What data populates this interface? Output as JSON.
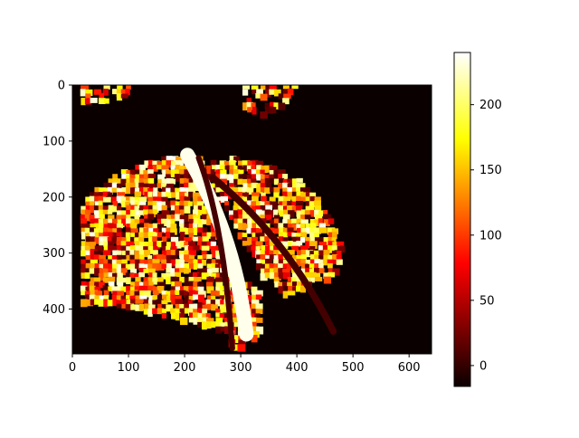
{
  "chart_data": {
    "type": "heatmap",
    "title": "",
    "xlabel": "",
    "ylabel": "",
    "xlim": [
      0,
      640
    ],
    "ylim": [
      480,
      0
    ],
    "x_ticks": [
      0,
      100,
      200,
      300,
      400,
      500,
      600
    ],
    "y_ticks": [
      0,
      100,
      200,
      300,
      400
    ],
    "colormap": "hot",
    "colorbar": {
      "range": [
        -16,
        240
      ],
      "ticks": [
        0,
        50,
        100,
        150,
        200
      ]
    },
    "regions": [
      {
        "name": "left-lobe",
        "poly": [
          [
            15,
            210
          ],
          [
            40,
            185
          ],
          [
            80,
            160
          ],
          [
            140,
            135
          ],
          [
            200,
            125
          ],
          [
            235,
            130
          ],
          [
            250,
            165
          ],
          [
            265,
            215
          ],
          [
            280,
            270
          ],
          [
            295,
            330
          ],
          [
            305,
            390
          ],
          [
            305,
            450
          ],
          [
            270,
            440
          ],
          [
            190,
            420
          ],
          [
            110,
            400
          ],
          [
            50,
            395
          ],
          [
            15,
            395
          ]
        ],
        "density": 0.8
      },
      {
        "name": "right-lobe",
        "poly": [
          [
            230,
            140
          ],
          [
            290,
            130
          ],
          [
            340,
            140
          ],
          [
            390,
            160
          ],
          [
            420,
            185
          ],
          [
            440,
            205
          ],
          [
            460,
            240
          ],
          [
            480,
            275
          ],
          [
            478,
            320
          ],
          [
            460,
            345
          ],
          [
            410,
            365
          ],
          [
            380,
            375
          ],
          [
            340,
            340
          ],
          [
            300,
            270
          ],
          [
            265,
            200
          ]
        ],
        "density": 0.85
      },
      {
        "name": "top-left-strip",
        "poly": [
          [
            15,
            0
          ],
          [
            110,
            0
          ],
          [
            95,
            20
          ],
          [
            60,
            30
          ],
          [
            20,
            35
          ]
        ],
        "density": 0.7
      },
      {
        "name": "top-center-strip",
        "poly": [
          [
            305,
            0
          ],
          [
            400,
            0
          ],
          [
            380,
            35
          ],
          [
            340,
            55
          ],
          [
            300,
            40
          ]
        ],
        "density": 0.6
      },
      {
        "name": "bottom-center",
        "poly": [
          [
            270,
            350
          ],
          [
            330,
            355
          ],
          [
            340,
            400
          ],
          [
            330,
            465
          ],
          [
            285,
            470
          ],
          [
            270,
            420
          ]
        ],
        "density": 0.7
      }
    ],
    "bands": [
      {
        "name": "bright-band",
        "from": [
          205,
          125
        ],
        "ctrl": [
          290,
          270
        ],
        "to": [
          310,
          445
        ],
        "width": 26,
        "value": 235
      },
      {
        "name": "dark-crack-1",
        "from": [
          225,
          130
        ],
        "ctrl": [
          270,
          250
        ],
        "to": [
          285,
          470
        ],
        "width": 10,
        "value": 5
      },
      {
        "name": "dark-crack-2",
        "from": [
          250,
          165
        ],
        "ctrl": [
          380,
          270
        ],
        "to": [
          465,
          440
        ],
        "width": 12,
        "value": 5
      }
    ]
  }
}
